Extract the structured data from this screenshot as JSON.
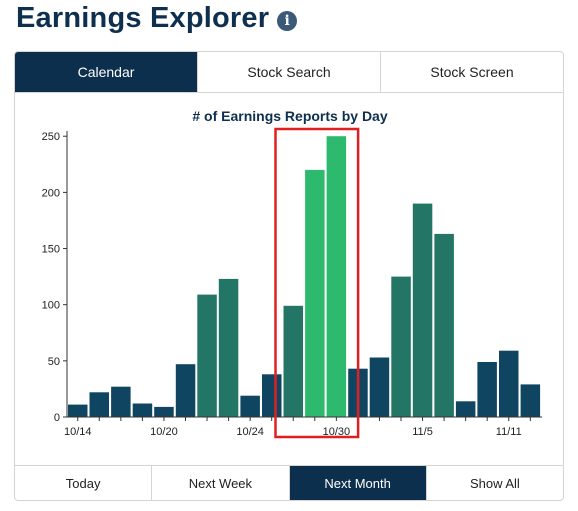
{
  "header": {
    "title": "Earnings Explorer",
    "info_icon": "info-icon"
  },
  "tabs": [
    {
      "label": "Calendar",
      "active": true
    },
    {
      "label": "Stock Search",
      "active": false
    },
    {
      "label": "Stock Screen",
      "active": false
    }
  ],
  "range_buttons": [
    {
      "label": "Today",
      "active": false
    },
    {
      "label": "Next Week",
      "active": false
    },
    {
      "label": "Next Month",
      "active": true
    },
    {
      "label": "Show All",
      "active": false
    }
  ],
  "colors": {
    "navy": "#0c2f4e",
    "dark_teal": "#0f4560",
    "mid_green": "#237565",
    "bright_green": "#2dba6e",
    "highlight_box": "#e02020"
  },
  "chart_data": {
    "type": "bar",
    "title": "# of Earnings Reports by Day",
    "ylim": [
      0,
      260
    ],
    "yticks": [
      0,
      50,
      100,
      150,
      200,
      250
    ],
    "x_tick_labels": [
      {
        "label": "10/14",
        "index": 0
      },
      {
        "label": "10/20",
        "index": 4
      },
      {
        "label": "10/24",
        "index": 8
      },
      {
        "label": "10/30",
        "index": 12
      },
      {
        "label": "11/5",
        "index": 16
      },
      {
        "label": "11/11",
        "index": 20
      }
    ],
    "values": [
      11,
      22,
      27,
      12,
      9,
      47,
      109,
      123,
      19,
      38,
      99,
      220,
      250,
      43,
      53,
      125,
      190,
      163,
      14,
      49,
      59,
      29
    ],
    "bar_colors": [
      "dark_teal",
      "dark_teal",
      "dark_teal",
      "dark_teal",
      "dark_teal",
      "dark_teal",
      "mid_green",
      "mid_green",
      "dark_teal",
      "dark_teal",
      "mid_green",
      "bright_green",
      "bright_green",
      "dark_teal",
      "dark_teal",
      "mid_green",
      "mid_green",
      "mid_green",
      "dark_teal",
      "dark_teal",
      "dark_teal",
      "dark_teal"
    ],
    "highlight": {
      "start_index": 10,
      "end_index": 12
    }
  }
}
